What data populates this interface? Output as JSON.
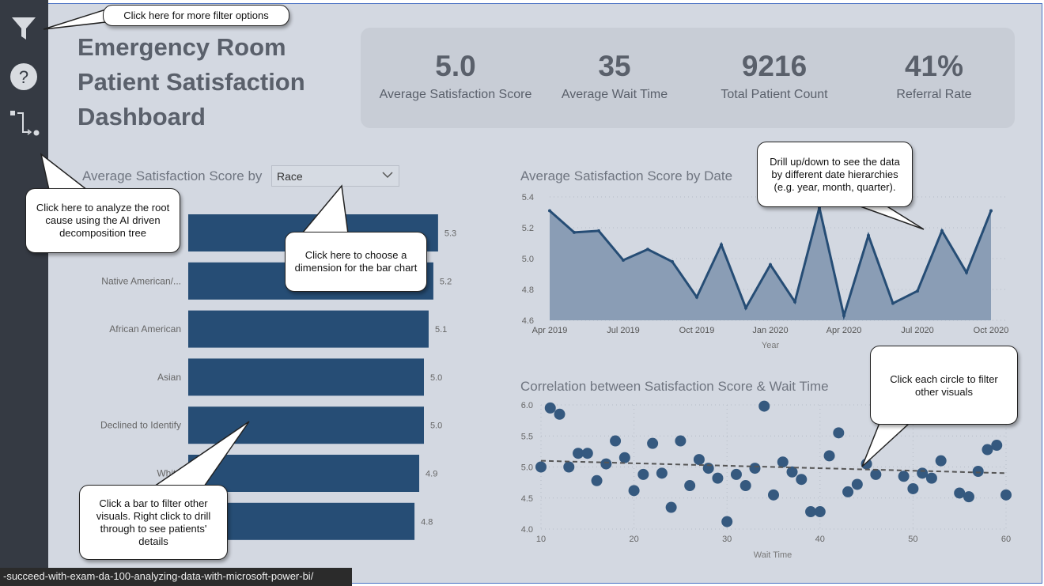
{
  "header": {
    "title": "Emergency Room Patient Satisfaction Dashboard"
  },
  "sidebar": {
    "icons": [
      "filter-icon",
      "help-icon",
      "decomposition-tree-icon"
    ]
  },
  "kpis": [
    {
      "value": "5.0",
      "label": "Average Satisfaction Score"
    },
    {
      "value": "35",
      "label": "Average Wait Time"
    },
    {
      "value": "9216",
      "label": "Total Patient Count"
    },
    {
      "value": "41%",
      "label": "Referral Rate"
    }
  ],
  "bar_visual": {
    "title": "Average Satisfaction Score by",
    "dropdown_value": "Race"
  },
  "colors": {
    "bar": "#264d75",
    "area": "#8a9db5",
    "line": "#264d75",
    "dot": "#35597f",
    "bg": "#d3d8e1"
  },
  "chart_data": [
    {
      "type": "bar",
      "title": "Average Satisfaction Score by Race",
      "categories": [
        "",
        "Native American/...",
        "African American",
        "Asian",
        "Declined to Identify",
        "White",
        ""
      ],
      "values": [
        5.3,
        5.2,
        5.1,
        5.0,
        5.0,
        4.9,
        4.8
      ],
      "value_labels": [
        "5.3",
        "5.2",
        "5.1",
        "5.0",
        "5.0",
        "4.9",
        "4.8"
      ]
    },
    {
      "type": "area",
      "title": "Average Satisfaction Score by Date",
      "xlabel": "Year",
      "ylim": [
        4.6,
        5.4
      ],
      "yticks": [
        "4.6",
        "4.8",
        "5.0",
        "5.2",
        "5.4"
      ],
      "xticks": [
        "Apr 2019",
        "Jul 2019",
        "Oct 2019",
        "Jan 2020",
        "Apr 2020",
        "Jul 2020",
        "Oct 2020"
      ],
      "x": [
        "2019-04",
        "2019-05",
        "2019-06",
        "2019-07",
        "2019-08",
        "2019-09",
        "2019-10",
        "2019-11",
        "2019-12",
        "2020-01",
        "2020-02",
        "2020-03",
        "2020-04",
        "2020-05",
        "2020-06",
        "2020-07",
        "2020-08",
        "2020-09",
        "2020-10"
      ],
      "values": [
        5.31,
        5.17,
        5.18,
        4.99,
        5.06,
        4.98,
        4.75,
        5.09,
        4.68,
        4.96,
        4.72,
        5.33,
        4.63,
        5.15,
        4.71,
        4.79,
        5.18,
        4.91,
        5.31
      ]
    },
    {
      "type": "scatter",
      "title": "Correlation between Satisfaction Score & Wait Time",
      "xlabel": "Wait Time",
      "xlim": [
        10,
        60
      ],
      "ylim": [
        4.0,
        6.0
      ],
      "xticks": [
        "10",
        "20",
        "30",
        "40",
        "50",
        "60"
      ],
      "yticks": [
        "4.0",
        "4.5",
        "5.0",
        "5.5",
        "6.0"
      ],
      "trend": [
        [
          10,
          5.1
        ],
        [
          60,
          4.9
        ]
      ],
      "points": [
        [
          10,
          5.0
        ],
        [
          11,
          5.95
        ],
        [
          12,
          5.85
        ],
        [
          13,
          5.0
        ],
        [
          14,
          5.22
        ],
        [
          15,
          5.22
        ],
        [
          16,
          4.78
        ],
        [
          17,
          5.05
        ],
        [
          18,
          5.42
        ],
        [
          19,
          5.15
        ],
        [
          20,
          4.62
        ],
        [
          21,
          4.88
        ],
        [
          22,
          5.38
        ],
        [
          23,
          4.9
        ],
        [
          24,
          4.35
        ],
        [
          25,
          5.42
        ],
        [
          26,
          4.7
        ],
        [
          27,
          5.12
        ],
        [
          28,
          4.98
        ],
        [
          29,
          4.82
        ],
        [
          30,
          4.12
        ],
        [
          31,
          4.88
        ],
        [
          32,
          4.7
        ],
        [
          33,
          4.98
        ],
        [
          34,
          5.98
        ],
        [
          35,
          4.55
        ],
        [
          36,
          5.08
        ],
        [
          37,
          4.92
        ],
        [
          38,
          4.8
        ],
        [
          39,
          4.28
        ],
        [
          40,
          4.28
        ],
        [
          41,
          5.18
        ],
        [
          42,
          5.55
        ],
        [
          43,
          4.6
        ],
        [
          44,
          4.72
        ],
        [
          45,
          5.05
        ],
        [
          46,
          4.88
        ],
        [
          47,
          5.55
        ],
        [
          49,
          4.85
        ],
        [
          50,
          4.65
        ],
        [
          51,
          4.9
        ],
        [
          52,
          4.82
        ],
        [
          53,
          5.1
        ],
        [
          55,
          4.58
        ],
        [
          56,
          4.52
        ],
        [
          57,
          4.93
        ],
        [
          58,
          5.28
        ],
        [
          59,
          5.35
        ],
        [
          60,
          4.55
        ]
      ]
    }
  ],
  "callouts": {
    "filter": "Click here for more filter options",
    "decomp": "Click here to analyze the root cause using the AI driven decomposition tree",
    "dimension": "Click here to choose a dimension for the bar chart",
    "drill": "Drill up/down to see the data by different date hierarchies (e.g. year, month, quarter).",
    "circle": "Click each circle to filter other visuals",
    "bar": "Click a bar to filter other visuals. Right click to drill through to see patients' details"
  },
  "status_bar": {
    "url": "-succeed-with-exam-da-100-analyzing-data-with-microsoft-power-bi/"
  }
}
